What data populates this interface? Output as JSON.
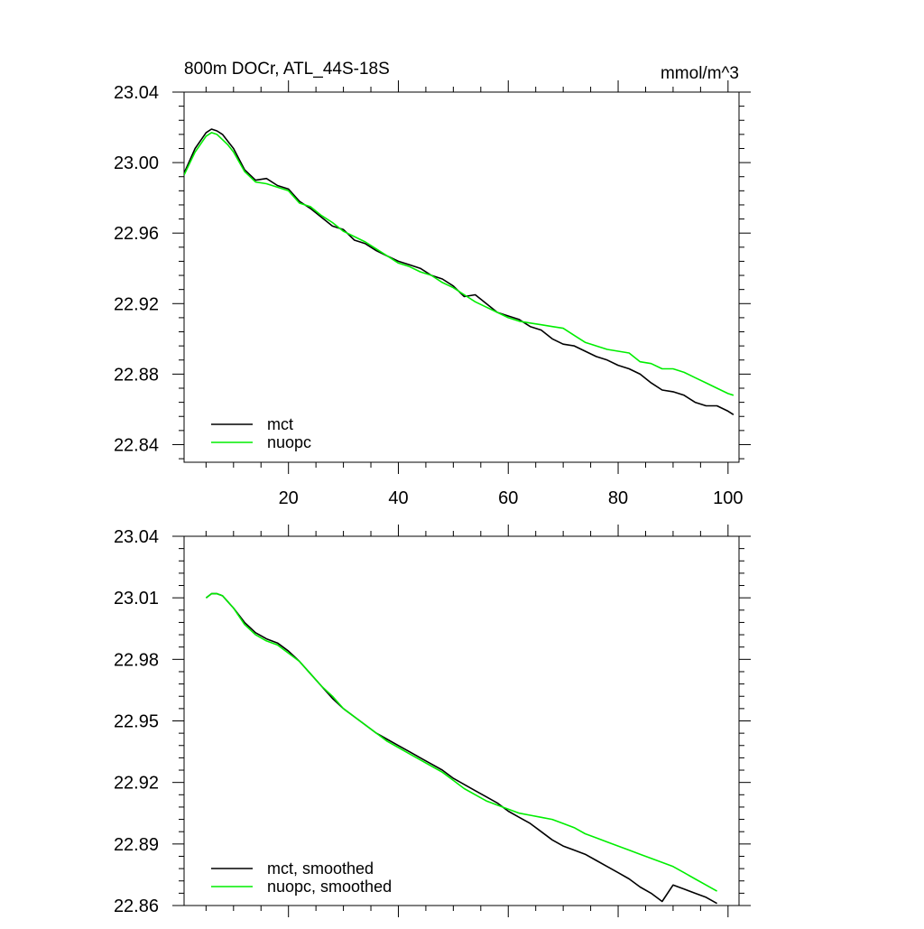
{
  "chart_data": [
    {
      "type": "line",
      "title": "800m DOCr, ATL_44S-18S",
      "units": "mmol/m^3",
      "xlabel": "",
      "ylabel": "",
      "xlim": [
        1,
        102
      ],
      "ylim": [
        22.83,
        23.04
      ],
      "x_ticks": [
        20,
        40,
        60,
        80,
        100
      ],
      "x_tick_labels": [
        "20",
        "40",
        "60",
        "80",
        "100"
      ],
      "y_ticks": [
        22.84,
        22.88,
        22.92,
        22.96,
        23.0,
        23.04
      ],
      "y_tick_labels": [
        "22.84",
        "22.88",
        "22.92",
        "22.96",
        "23.00",
        "23.04"
      ],
      "legend_position": "bottom-left",
      "series": [
        {
          "name": "mct",
          "color": "#000000",
          "x": [
            1,
            3,
            5,
            6,
            7,
            8,
            9,
            10,
            12,
            14,
            16,
            18,
            20,
            22,
            24,
            26,
            28,
            30,
            32,
            34,
            36,
            38,
            40,
            42,
            44,
            46,
            48,
            50,
            52,
            54,
            56,
            58,
            60,
            62,
            64,
            66,
            68,
            70,
            72,
            74,
            76,
            78,
            80,
            82,
            84,
            86,
            88,
            90,
            92,
            94,
            96,
            98,
            100,
            101
          ],
          "values": [
            22.994,
            23.008,
            23.017,
            23.019,
            23.018,
            23.016,
            23.012,
            23.008,
            22.996,
            22.99,
            22.991,
            22.987,
            22.985,
            22.978,
            22.974,
            22.969,
            22.964,
            22.962,
            22.956,
            22.954,
            22.95,
            22.947,
            22.944,
            22.942,
            22.94,
            22.936,
            22.934,
            22.93,
            22.924,
            22.925,
            22.92,
            22.915,
            22.913,
            22.911,
            22.907,
            22.905,
            22.9,
            22.897,
            22.896,
            22.893,
            22.89,
            22.888,
            22.885,
            22.883,
            22.88,
            22.875,
            22.871,
            22.87,
            22.868,
            22.864,
            22.862,
            22.862,
            22.859,
            22.857
          ]
        },
        {
          "name": "nuopc",
          "color": "#00ee00",
          "x": [
            1,
            3,
            5,
            6,
            7,
            8,
            9,
            10,
            12,
            14,
            16,
            18,
            20,
            22,
            24,
            26,
            28,
            30,
            32,
            34,
            36,
            38,
            40,
            42,
            44,
            46,
            48,
            50,
            52,
            54,
            56,
            58,
            60,
            62,
            64,
            66,
            68,
            70,
            72,
            74,
            76,
            78,
            80,
            82,
            84,
            86,
            88,
            90,
            92,
            94,
            96,
            98,
            100,
            101
          ],
          "values": [
            22.993,
            23.006,
            23.015,
            23.017,
            23.016,
            23.013,
            23.01,
            23.006,
            22.995,
            22.989,
            22.988,
            22.986,
            22.984,
            22.977,
            22.975,
            22.97,
            22.966,
            22.961,
            22.958,
            22.955,
            22.951,
            22.947,
            22.943,
            22.941,
            22.938,
            22.936,
            22.932,
            22.929,
            22.925,
            22.921,
            22.918,
            22.915,
            22.912,
            22.91,
            22.909,
            22.908,
            22.907,
            22.906,
            22.902,
            22.898,
            22.896,
            22.894,
            22.893,
            22.892,
            22.887,
            22.886,
            22.883,
            22.883,
            22.881,
            22.878,
            22.875,
            22.872,
            22.869,
            22.868
          ]
        }
      ]
    },
    {
      "type": "line",
      "title": "",
      "units": "",
      "xlabel": "",
      "ylabel": "",
      "xlim": [
        1,
        102
      ],
      "ylim": [
        22.86,
        23.04
      ],
      "x_ticks": [
        20,
        40,
        60,
        80,
        100
      ],
      "x_tick_labels": [
        "",
        "",
        "",
        "",
        ""
      ],
      "y_ticks": [
        22.86,
        22.89,
        22.92,
        22.95,
        22.98,
        23.01,
        23.04
      ],
      "y_tick_labels": [
        "22.86",
        "22.89",
        "22.92",
        "22.95",
        "22.98",
        "23.01",
        "23.04"
      ],
      "legend_position": "bottom-left",
      "series": [
        {
          "name": "mct, smoothed",
          "color": "#000000",
          "x": [
            5,
            6,
            7,
            8,
            9,
            10,
            12,
            14,
            16,
            18,
            20,
            22,
            24,
            26,
            28,
            30,
            32,
            34,
            36,
            38,
            40,
            42,
            44,
            46,
            48,
            50,
            52,
            54,
            56,
            58,
            60,
            62,
            64,
            66,
            68,
            70,
            72,
            74,
            76,
            78,
            80,
            82,
            84,
            86,
            88,
            90,
            92,
            94,
            96,
            98
          ],
          "values": [
            23.01,
            23.012,
            23.012,
            23.011,
            23.008,
            23.005,
            22.998,
            22.993,
            22.99,
            22.988,
            22.984,
            22.979,
            22.973,
            22.967,
            22.961,
            22.956,
            22.952,
            22.948,
            22.944,
            22.941,
            22.938,
            22.935,
            22.932,
            22.929,
            22.926,
            22.922,
            22.919,
            22.916,
            22.913,
            22.91,
            22.906,
            22.903,
            22.9,
            22.896,
            22.892,
            22.889,
            22.887,
            22.885,
            22.882,
            22.879,
            22.876,
            22.873,
            22.869,
            22.866,
            22.862,
            22.87,
            22.868,
            22.866,
            22.864,
            22.861
          ]
        },
        {
          "name": "nuopc, smoothed",
          "color": "#00ee00",
          "x": [
            5,
            6,
            7,
            8,
            9,
            10,
            12,
            14,
            16,
            18,
            20,
            22,
            24,
            26,
            28,
            30,
            32,
            34,
            36,
            38,
            40,
            42,
            44,
            46,
            48,
            50,
            52,
            54,
            56,
            58,
            60,
            62,
            64,
            66,
            68,
            70,
            72,
            74,
            76,
            78,
            80,
            82,
            84,
            86,
            88,
            90,
            92,
            94,
            96,
            98
          ],
          "values": [
            23.01,
            23.012,
            23.012,
            23.011,
            23.008,
            23.005,
            22.997,
            22.992,
            22.989,
            22.987,
            22.983,
            22.979,
            22.973,
            22.967,
            22.962,
            22.956,
            22.952,
            22.948,
            22.944,
            22.94,
            22.937,
            22.934,
            22.931,
            22.928,
            22.925,
            22.921,
            22.917,
            22.914,
            22.911,
            22.909,
            22.907,
            22.905,
            22.904,
            22.903,
            22.902,
            22.9,
            22.898,
            22.895,
            22.893,
            22.891,
            22.889,
            22.887,
            22.885,
            22.883,
            22.881,
            22.879,
            22.876,
            22.873,
            22.87,
            22.867
          ]
        }
      ]
    }
  ]
}
